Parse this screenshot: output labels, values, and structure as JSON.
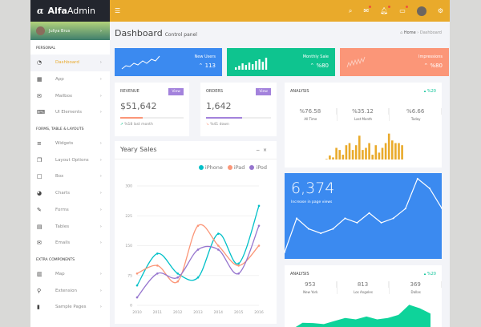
{
  "app": {
    "logo_glyph": "α",
    "logo_bold": "Alfa",
    "logo_light": "Admin"
  },
  "topbar": {
    "icons": [
      "search-icon",
      "mail-icon",
      "bell-icon",
      "chat-icon",
      "user-avatar",
      "gear-icon"
    ],
    "color": "#e9aa2b"
  },
  "sidebar": {
    "user": "Juliya Brus",
    "sections": [
      {
        "title": "PERSONAL",
        "items": [
          {
            "label": "Dashboard",
            "icon": "dashboard-icon",
            "active": true
          },
          {
            "label": "App",
            "icon": "grid-icon"
          },
          {
            "label": "Mailbox",
            "icon": "mail-icon"
          },
          {
            "label": "UI Elements",
            "icon": "laptop-icon"
          }
        ]
      },
      {
        "title": "FORMS, TABLE & LAYOUTS",
        "items": [
          {
            "label": "Widgets",
            "icon": "list-icon"
          },
          {
            "label": "Layout Options",
            "icon": "copy-icon"
          },
          {
            "label": "Box",
            "icon": "square-icon"
          },
          {
            "label": "Charts",
            "icon": "pie-chart-icon"
          },
          {
            "label": "Forms",
            "icon": "edit-icon"
          },
          {
            "label": "Tables",
            "icon": "table-icon"
          },
          {
            "label": "Emails",
            "icon": "envelope-open-icon"
          }
        ]
      },
      {
        "title": "EXTRA COMPONENTS",
        "items": [
          {
            "label": "Map",
            "icon": "map-icon"
          },
          {
            "label": "Extension",
            "icon": "plug-icon"
          },
          {
            "label": "Sample Pages",
            "icon": "file-icon"
          }
        ]
      }
    ]
  },
  "header": {
    "title": "Dashboard",
    "subtitle": "Control panel",
    "breadcrumb": [
      "Home",
      "Dashboard"
    ]
  },
  "stats": [
    {
      "label": "New Users",
      "value": "113",
      "color": "#3b8af0"
    },
    {
      "label": "Monthly Sale",
      "value": "%80",
      "color": "#0ec48f"
    },
    {
      "label": "Impressions",
      "value": "%80",
      "color": "#fb9678"
    }
  ],
  "revenue": {
    "title": "REVENUE",
    "button": "View",
    "value": "$51,642",
    "progress": 35,
    "note": "%18 last month",
    "color": "#fb9678"
  },
  "orders": {
    "title": "ORDERS",
    "button": "View",
    "value": "1,642",
    "progress": 55,
    "note": "%41 down",
    "color": "#a382dc"
  },
  "analysis1": {
    "title": "ANALYSIS",
    "trend": "%20",
    "cols": [
      {
        "value": "%76.58",
        "label": "All Time"
      },
      {
        "value": "%35.12",
        "label": "Last Month"
      },
      {
        "value": "%6.66",
        "label": "Today"
      }
    ],
    "bars": [
      2,
      15,
      8,
      44,
      36,
      18,
      54,
      62,
      36,
      54,
      90,
      36,
      44,
      62,
      18,
      54,
      26,
      44,
      62,
      98,
      72,
      62,
      62,
      54
    ]
  },
  "yearly": {
    "title": "Yeary Sales"
  },
  "chart_data": {
    "type": "line",
    "title": "Yeary Sales",
    "categories": [
      "2010",
      "2011",
      "2012",
      "2013",
      "2014",
      "2015",
      "2016"
    ],
    "ylim": [
      0,
      300
    ],
    "yticks": [
      "0",
      "75",
      "150",
      "225",
      "300"
    ],
    "legend": "top-right",
    "grid": true,
    "series": [
      {
        "name": "iPhone",
        "color": "#00c0c8",
        "values": [
          50,
          130,
          80,
          70,
          180,
          105,
          250
        ]
      },
      {
        "name": "iPad",
        "color": "#fb9678",
        "values": [
          80,
          100,
          60,
          200,
          150,
          100,
          150
        ]
      },
      {
        "name": "iPod",
        "color": "#9675ce",
        "values": [
          20,
          80,
          70,
          140,
          140,
          80,
          200
        ]
      }
    ]
  },
  "pageviews": {
    "value": "6,374",
    "label": "Increase in page views",
    "points": [
      15,
      92,
      68,
      58,
      68,
      92,
      82,
      104,
      82,
      92,
      114,
      182,
      160,
      115
    ]
  },
  "analysis2": {
    "title": "ANALYSIS",
    "trend": "%20",
    "cols": [
      {
        "value": "953",
        "label": "New York"
      },
      {
        "value": "813",
        "label": "Los Angeles"
      },
      {
        "value": "369",
        "label": "Dallas"
      }
    ],
    "area": [
      0,
      25,
      24,
      20,
      32,
      43,
      38,
      49,
      38,
      43,
      55,
      93,
      80,
      60
    ]
  }
}
